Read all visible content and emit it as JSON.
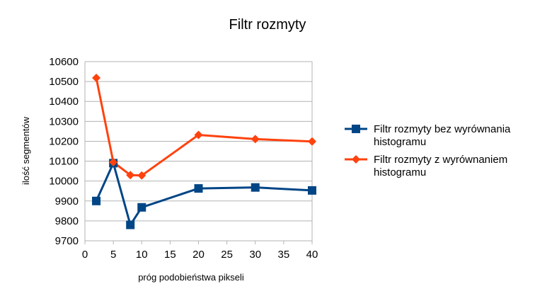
{
  "chart_data": {
    "type": "line",
    "title": "Filtr rozmyty",
    "xlabel": "próg podobieństwa pikseli",
    "ylabel": "ilość segmentów",
    "xlim": [
      0,
      40
    ],
    "ylim": [
      9700,
      10600
    ],
    "x_ticks": [
      0,
      5,
      10,
      15,
      20,
      25,
      30,
      35,
      40
    ],
    "y_ticks": [
      9700,
      9800,
      9900,
      10000,
      10100,
      10200,
      10300,
      10400,
      10500,
      10600
    ],
    "grid": "horizontal",
    "legend_position": "right",
    "series": [
      {
        "name": "Filtr rozmyty bez wyrównania histogramu",
        "legend_lines": [
          "Filtr rozmyty bez wyrównania",
          "histogramu"
        ],
        "color": "#004586",
        "marker": "square",
        "x": [
          2,
          5,
          8,
          10,
          20,
          30,
          40
        ],
        "y": [
          9900,
          10090,
          9780,
          9868,
          9963,
          9968,
          9953
        ]
      },
      {
        "name": "Filtr rozmyty z wyrównaniem histogramu",
        "legend_lines": [
          "Filtr rozmyty z wyrównaniem",
          "histogramu"
        ],
        "color": "#ff420e",
        "marker": "diamond",
        "x": [
          2,
          5,
          8,
          10,
          20,
          30,
          40
        ],
        "y": [
          10518,
          10095,
          10030,
          10028,
          10232,
          10211,
          10199
        ]
      }
    ]
  }
}
